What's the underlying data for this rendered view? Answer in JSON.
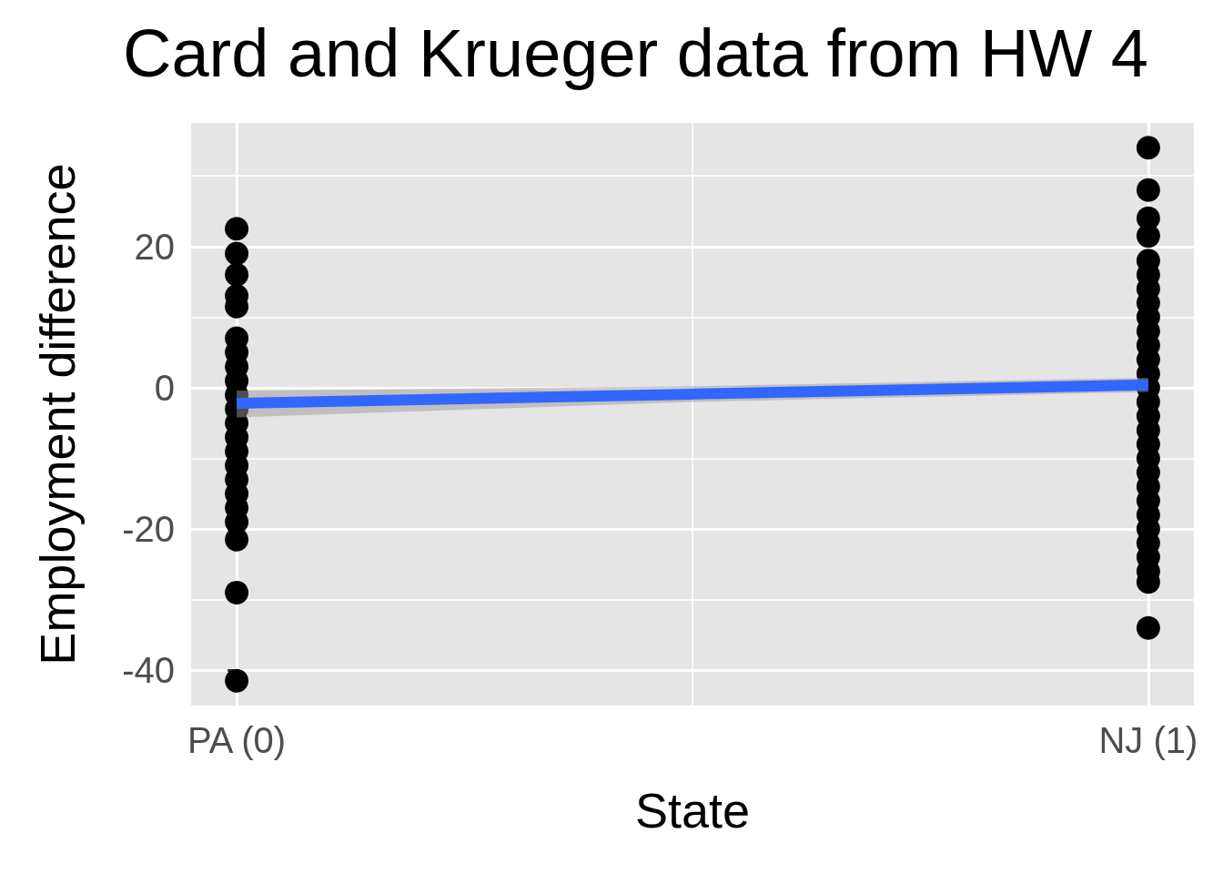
{
  "chart_data": {
    "type": "scatter",
    "title": "Card and Krueger data from HW 4",
    "xlabel": "State",
    "ylabel": "Employment difference",
    "xlim": [
      -0.05,
      1.05
    ],
    "ylim": [
      -45,
      37.5
    ],
    "xticks": [
      {
        "value": 0,
        "label": "PA (0)"
      },
      {
        "value": 1,
        "label": "NJ (1)"
      }
    ],
    "yticks": [
      -40,
      -20,
      0,
      20
    ],
    "grid": true,
    "marker": "circle",
    "series": [
      {
        "color": "#000000",
        "x": [
          0,
          0,
          0,
          0,
          0,
          0,
          0,
          0,
          0,
          0,
          0,
          0,
          0,
          0,
          0,
          0,
          0,
          0,
          0,
          0,
          0,
          0,
          1,
          1,
          1,
          1,
          1,
          1,
          1,
          1,
          1,
          1,
          1,
          1,
          1,
          1,
          1,
          1,
          1,
          1,
          1,
          1,
          1,
          1,
          1,
          1,
          1,
          1,
          1,
          1,
          1
        ],
        "values": [
          22.5,
          19,
          16,
          13,
          11.5,
          7,
          5,
          3,
          1,
          -1,
          -3,
          -5,
          -7,
          -9,
          -11,
          -13,
          -15,
          -17,
          -19,
          -21.5,
          -29,
          -41.5,
          34,
          28,
          24,
          21.5,
          18,
          16,
          14,
          12,
          10,
          8,
          6,
          4,
          2,
          0,
          -2,
          -4,
          -6,
          -8,
          -10,
          -12,
          -14,
          -16,
          -18,
          -20,
          -22,
          -24,
          -26,
          -27.5,
          -34
        ]
      },
      {
        "type": "line",
        "marker": "none",
        "color": "#3366ff",
        "x": [
          0,
          0.5,
          1
        ],
        "values": [
          -2.2,
          -0.9,
          0.4
        ],
        "lower": [
          -4.2,
          -2.0,
          -0.6
        ],
        "upper": [
          -0.4,
          0.2,
          1.4
        ]
      }
    ]
  }
}
